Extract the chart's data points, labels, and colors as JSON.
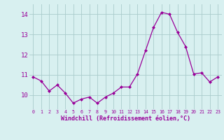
{
  "x": [
    0,
    1,
    2,
    3,
    4,
    5,
    6,
    7,
    8,
    9,
    10,
    11,
    12,
    13,
    14,
    15,
    16,
    17,
    18,
    19,
    20,
    21,
    22,
    23
  ],
  "y": [
    10.9,
    10.7,
    10.2,
    10.5,
    10.1,
    9.6,
    9.8,
    9.9,
    9.6,
    9.9,
    10.1,
    10.4,
    10.4,
    11.05,
    12.2,
    13.35,
    14.1,
    14.0,
    13.1,
    12.4,
    11.05,
    11.1,
    10.65,
    10.9
  ],
  "line_color": "#990099",
  "marker": "D",
  "marker_size": 2,
  "bg_color": "#d8f0f0",
  "grid_color": "#aacccc",
  "xlabel": "Windchill (Refroidissement éolien,°C)",
  "xlabel_color": "#990099",
  "tick_color": "#990099",
  "ylim": [
    9.3,
    14.5
  ],
  "xlim": [
    -0.5,
    23.5
  ],
  "yticks": [
    10,
    11,
    12,
    13,
    14
  ],
  "xticks": [
    0,
    1,
    2,
    3,
    4,
    5,
    6,
    7,
    8,
    9,
    10,
    11,
    12,
    13,
    14,
    15,
    16,
    17,
    18,
    19,
    20,
    21,
    22,
    23
  ]
}
